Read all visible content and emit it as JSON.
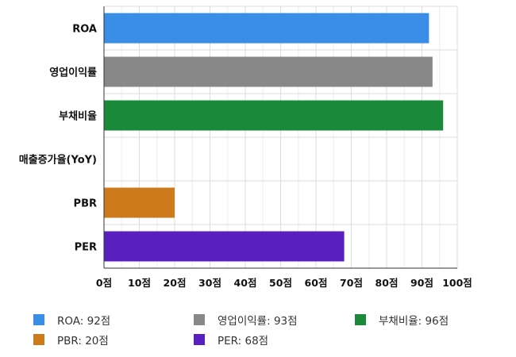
{
  "chart_data": {
    "type": "bar",
    "orientation": "horizontal",
    "categories": [
      "ROA",
      "영업이익률",
      "부채비율",
      "매출증가율(YoY)",
      "PBR",
      "PER"
    ],
    "values": [
      92,
      93,
      96,
      null,
      20,
      68
    ],
    "colors": [
      "#3a8ee6",
      "#888888",
      "#1a8a3a",
      null,
      "#cc7a1c",
      "#5a1fbf"
    ],
    "xlim": [
      0,
      100
    ],
    "xticks": [
      0,
      10,
      20,
      30,
      40,
      50,
      60,
      70,
      80,
      90,
      100
    ],
    "tick_suffix": "점",
    "grid": true,
    "legend_position": "bottom",
    "legend": [
      {
        "label": "ROA: 92점",
        "color": "#3a8ee6"
      },
      {
        "label": "영업이익률: 93점",
        "color": "#888888"
      },
      {
        "label": "부채비율: 96점",
        "color": "#1a8a3a"
      },
      {
        "label": "PBR: 20점",
        "color": "#cc7a1c"
      },
      {
        "label": "PER: 68점",
        "color": "#5a1fbf"
      }
    ]
  }
}
